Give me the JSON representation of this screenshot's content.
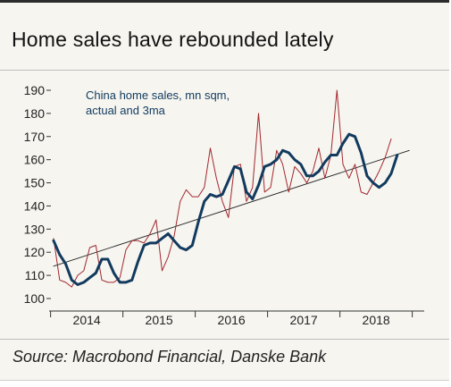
{
  "title": "Home sales have rebounded lately",
  "source": "Source: Macrobond Financial, Danske Bank",
  "chart_data": {
    "type": "line",
    "ylim": [
      100,
      190
    ],
    "yticks": [
      100,
      110,
      120,
      130,
      140,
      150,
      160,
      170,
      180,
      190
    ],
    "x_year_labels": [
      "2014",
      "2015",
      "2016",
      "2017",
      "2018"
    ],
    "grid": false,
    "annotation": "China home sales, mn sqm, actual and 3ma",
    "annotation_lines": [
      "China home sales, mn sqm,",
      "actual and 3ma"
    ],
    "series": [
      {
        "key": "actual",
        "color": "#a2272d",
        "x": [
          "2014-01",
          "2014-02",
          "2014-03",
          "2014-04",
          "2014-05",
          "2014-06",
          "2014-07",
          "2014-08",
          "2014-09",
          "2014-10",
          "2014-11",
          "2014-12",
          "2015-01",
          "2015-02",
          "2015-03",
          "2015-04",
          "2015-05",
          "2015-06",
          "2015-07",
          "2015-08",
          "2015-09",
          "2015-10",
          "2015-11",
          "2015-12",
          "2016-01",
          "2016-02",
          "2016-03",
          "2016-04",
          "2016-05",
          "2016-06",
          "2016-07",
          "2016-08",
          "2016-09",
          "2016-10",
          "2016-11",
          "2016-12",
          "2017-01",
          "2017-02",
          "2017-03",
          "2017-04",
          "2017-05",
          "2017-06",
          "2017-07",
          "2017-08",
          "2017-09",
          "2017-10",
          "2017-11",
          "2017-12",
          "2018-01",
          "2018-02",
          "2018-03",
          "2018-04",
          "2018-05",
          "2018-06",
          "2018-07",
          "2018-08",
          "2018-09",
          "2018-10",
          "2018-11",
          "2018-12"
        ],
        "values": [
          126,
          108,
          107,
          105,
          110,
          112,
          122,
          123,
          108,
          107,
          107,
          109,
          121,
          125,
          125,
          124,
          128,
          134,
          112,
          118,
          127,
          142,
          147,
          144,
          144,
          148,
          165,
          152,
          142,
          135,
          157,
          158,
          142,
          148,
          180,
          146,
          148,
          164,
          158,
          146,
          157,
          154,
          150,
          155,
          165,
          152,
          162,
          190,
          158,
          152,
          158,
          146,
          145,
          150,
          155,
          161,
          169,
          null,
          null,
          null
        ]
      },
      {
        "key": "3ma",
        "color": "#123a5e",
        "x": [
          "2014-01",
          "2014-02",
          "2014-03",
          "2014-04",
          "2014-05",
          "2014-06",
          "2014-07",
          "2014-08",
          "2014-09",
          "2014-10",
          "2014-11",
          "2014-12",
          "2015-01",
          "2015-02",
          "2015-03",
          "2015-04",
          "2015-05",
          "2015-06",
          "2015-07",
          "2015-08",
          "2015-09",
          "2015-10",
          "2015-11",
          "2015-12",
          "2016-01",
          "2016-02",
          "2016-03",
          "2016-04",
          "2016-05",
          "2016-06",
          "2016-07",
          "2016-08",
          "2016-09",
          "2016-10",
          "2016-11",
          "2016-12",
          "2017-01",
          "2017-02",
          "2017-03",
          "2017-04",
          "2017-05",
          "2017-06",
          "2017-07",
          "2017-08",
          "2017-09",
          "2017-10",
          "2017-11",
          "2017-12",
          "2018-01",
          "2018-02",
          "2018-03",
          "2018-04",
          "2018-05",
          "2018-06",
          "2018-07",
          "2018-08",
          "2018-09",
          "2018-10",
          "2018-11",
          "2018-12"
        ],
        "values": [
          125,
          119,
          115,
          108,
          106,
          107,
          109,
          111,
          117,
          117,
          111,
          107,
          107,
          108,
          116,
          123,
          124,
          124,
          126,
          128,
          125,
          122,
          121,
          123,
          133,
          142,
          145,
          144,
          145,
          151,
          157,
          156,
          146,
          143,
          149,
          157,
          158,
          160,
          164,
          163,
          160,
          158,
          153,
          153,
          155,
          159,
          162,
          162,
          167,
          171,
          170,
          163,
          153,
          150,
          148,
          150,
          154,
          162,
          null,
          null
        ]
      },
      {
        "key": "trend",
        "color": "#222222",
        "x": [
          "2014-01",
          "2018-12"
        ],
        "values": [
          114,
          164
        ]
      }
    ]
  }
}
